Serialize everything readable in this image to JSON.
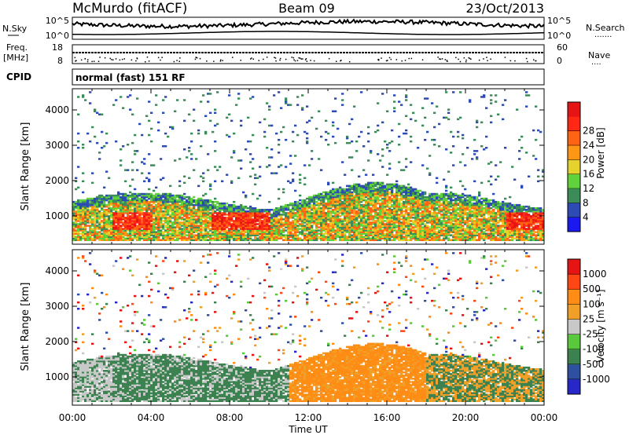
{
  "header": {
    "station": "McMurdo (fitACF)",
    "beam": "Beam 09",
    "date": "23/Oct/2013"
  },
  "noise_panel": {
    "left_label": "N.Sky",
    "right_label": "N.Search",
    "right_dots": "·······",
    "left_ticks": [
      "10^5",
      "10^0"
    ],
    "right_ticks": [
      "10^5",
      "10^0"
    ]
  },
  "freq_panel": {
    "left_label_line1": "Freq.",
    "left_label_line2": "[MHz]",
    "right_label": "Nave",
    "right_dots": "····",
    "left_ticks": [
      "18",
      "8"
    ],
    "right_ticks": [
      "60",
      "0"
    ]
  },
  "cpid": {
    "label": "CPID",
    "text": "normal (fast) 151 RF"
  },
  "chart_data": [
    {
      "type": "heatmap",
      "name": "power",
      "ylabel": "Slant Range [km]",
      "ylim": [
        200,
        4600
      ],
      "yticks": [
        "1000",
        "2000",
        "3000",
        "4000"
      ],
      "xlim": [
        "00:00",
        "24:00"
      ],
      "colorbar": {
        "label": "Power [dB]",
        "ticks": [
          "4",
          "8",
          "12",
          "16",
          "20",
          "24",
          "28"
        ],
        "colors": [
          "#1a1af0",
          "#2d4bb4",
          "#3c8c5a",
          "#5fd23c",
          "#e6d22d",
          "#ff9614",
          "#ff6414",
          "#ff2814",
          "#e61414"
        ]
      }
    },
    {
      "type": "heatmap",
      "name": "velocity",
      "ylabel": "Slant Range [km]",
      "ylim": [
        200,
        4600
      ],
      "yticks": [
        "1000",
        "2000",
        "3000",
        "4000"
      ],
      "xlim": [
        "00:00",
        "24:00"
      ],
      "xticks": [
        "00:00",
        "04:00",
        "08:00",
        "12:00",
        "16:00",
        "20:00",
        "00:00"
      ],
      "xlabel": "Time UT",
      "colorbar": {
        "label": "Velocity [m s⁻¹]",
        "ticks": [
          "1000",
          "500",
          "100",
          "25",
          "-25",
          "-100",
          "-500",
          "-1000"
        ],
        "colors": [
          "#2828c8",
          "#2d50a0",
          "#3c8250",
          "#5ac83c",
          "#c8c8c8",
          "#f0a028",
          "#ff8c14",
          "#ff4614",
          "#e61414"
        ]
      }
    }
  ]
}
